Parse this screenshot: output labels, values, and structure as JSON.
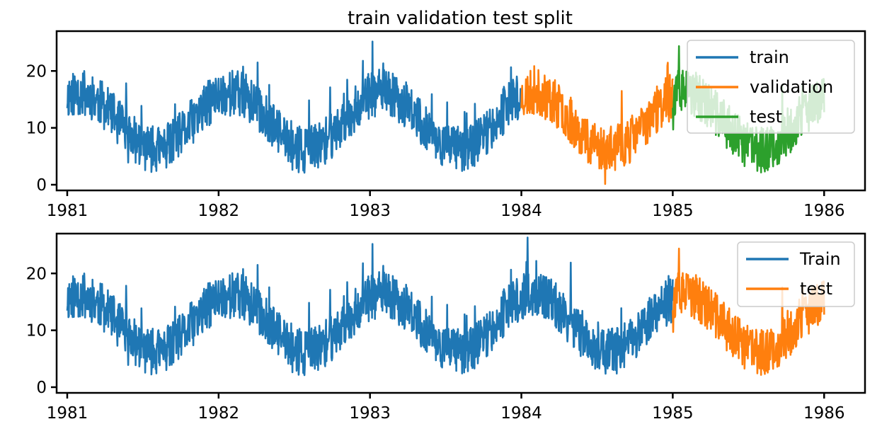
{
  "chart_data": [
    {
      "type": "line",
      "title": "train validation test split",
      "xlabel": "",
      "ylabel": "",
      "x_unit": "year",
      "xlim": [
        1980.93,
        1986.27
      ],
      "ylim": [
        -1,
        27
      ],
      "x_ticks": [
        1981,
        1982,
        1983,
        1984,
        1985,
        1986
      ],
      "x_tick_labels": [
        "1981",
        "1982",
        "1983",
        "1984",
        "1985",
        "1986"
      ],
      "y_ticks": [
        0,
        10,
        20
      ],
      "y_tick_labels": [
        "0",
        "10",
        "20"
      ],
      "legend_position": "top-right",
      "series": [
        {
          "name": "train",
          "color": "#1f77b4",
          "x_range": [
            1981.0,
            1984.0
          ],
          "seed": 11
        },
        {
          "name": "validation",
          "color": "#ff7f0e",
          "x_range": [
            1984.0,
            1985.0
          ],
          "seed": 23
        },
        {
          "name": "test",
          "color": "#2ca02c",
          "x_range": [
            1985.0,
            1986.0
          ],
          "seed": 37
        }
      ]
    },
    {
      "type": "line",
      "title": "",
      "xlabel": "",
      "ylabel": "",
      "x_unit": "year",
      "xlim": [
        1980.93,
        1986.27
      ],
      "ylim": [
        -1,
        27
      ],
      "x_ticks": [
        1981,
        1982,
        1983,
        1984,
        1985,
        1986
      ],
      "x_tick_labels": [
        "1981",
        "1982",
        "1983",
        "1984",
        "1985",
        "1986"
      ],
      "y_ticks": [
        0,
        10,
        20
      ],
      "y_tick_labels": [
        "0",
        "10",
        "20"
      ],
      "legend_position": "top-right",
      "series": [
        {
          "name": "Train",
          "color": "#1f77b4",
          "x_range": [
            1981.0,
            1985.0
          ],
          "seed": 11
        },
        {
          "name": "test",
          "color": "#ff7f0e",
          "x_range": [
            1985.0,
            1986.0
          ],
          "seed": 37
        }
      ]
    }
  ]
}
